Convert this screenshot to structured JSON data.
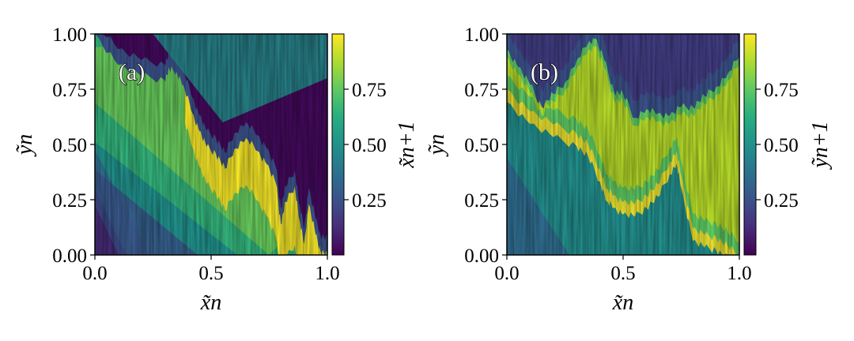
{
  "chart_data": [
    {
      "type": "heatmap",
      "panel_label": "(a)",
      "xlabel": "x̃n",
      "ylabel": "ỹn",
      "colorbar_label": "x̃n+1",
      "xlim": [
        0.0,
        1.0
      ],
      "ylim": [
        0.0,
        1.0
      ],
      "x_ticks": [
        0.0,
        0.5,
        1.0
      ],
      "x_tick_labels": [
        "0.0",
        "0.5",
        "1.0"
      ],
      "y_ticks": [
        0.0,
        0.25,
        0.5,
        0.75,
        1.0
      ],
      "y_tick_labels": [
        "0.00",
        "0.25",
        "0.50",
        "0.75",
        "1.00"
      ],
      "colorbar_ticks": [
        0.25,
        0.5,
        0.75
      ],
      "colorbar_tick_labels": [
        "0.25",
        "0.50",
        "0.75"
      ],
      "colorbar_range": [
        0.0,
        1.0
      ],
      "colormap": "viridis",
      "grid": false,
      "boundary_curve": {
        "x": [
          0.0,
          0.1,
          0.2,
          0.3,
          0.32,
          0.35,
          0.38,
          0.42,
          0.45,
          0.48,
          0.52,
          0.56,
          0.6,
          0.65,
          0.7,
          0.74,
          0.78,
          0.8,
          0.82,
          0.86,
          0.88,
          0.9,
          0.92,
          0.95,
          0.97,
          1.0
        ],
        "y": [
          1.0,
          0.86,
          0.81,
          0.79,
          0.84,
          0.83,
          0.77,
          0.64,
          0.56,
          0.49,
          0.46,
          0.39,
          0.48,
          0.53,
          0.47,
          0.41,
          0.32,
          0.14,
          0.24,
          0.31,
          0.16,
          0.05,
          0.23,
          0.09,
          0.02,
          0.0
        ]
      }
    },
    {
      "type": "heatmap",
      "panel_label": "(b)",
      "xlabel": "x̃n",
      "ylabel": "ỹn",
      "colorbar_label": "ỹn+1",
      "xlim": [
        0.0,
        1.0
      ],
      "ylim": [
        0.0,
        1.0
      ],
      "x_ticks": [
        0.0,
        0.5,
        1.0
      ],
      "x_tick_labels": [
        "0.0",
        "0.5",
        "1.0"
      ],
      "y_ticks": [
        0.0,
        0.25,
        0.5,
        0.75,
        1.0
      ],
      "y_tick_labels": [
        "0.00",
        "0.25",
        "0.50",
        "0.75",
        "1.00"
      ],
      "colorbar_ticks": [
        0.25,
        0.5,
        0.75
      ],
      "colorbar_tick_labels": [
        "0.25",
        "0.50",
        "0.75"
      ],
      "colorbar_range": [
        0.0,
        1.0
      ],
      "colormap": "viridis",
      "grid": false,
      "upper_curve": {
        "x": [
          0.0,
          0.05,
          0.1,
          0.15,
          0.2,
          0.25,
          0.3,
          0.35,
          0.38,
          0.42,
          0.46,
          0.5,
          0.55,
          0.6,
          0.65,
          0.7,
          0.75,
          0.8,
          0.85,
          0.9,
          0.95,
          1.0
        ],
        "y": [
          0.93,
          0.85,
          0.77,
          0.67,
          0.73,
          0.78,
          0.88,
          0.96,
          0.98,
          0.88,
          0.74,
          0.73,
          0.62,
          0.66,
          0.64,
          0.63,
          0.67,
          0.67,
          0.72,
          0.76,
          0.82,
          0.9
        ]
      },
      "lower_curve": {
        "x": [
          0.0,
          0.1,
          0.2,
          0.3,
          0.35,
          0.4,
          0.43,
          0.46,
          0.5,
          0.55,
          0.6,
          0.65,
          0.7,
          0.73,
          0.75,
          0.8,
          0.85,
          0.9,
          0.95,
          1.0
        ],
        "y": [
          0.75,
          0.65,
          0.59,
          0.55,
          0.5,
          0.39,
          0.3,
          0.27,
          0.24,
          0.23,
          0.27,
          0.32,
          0.42,
          0.47,
          0.36,
          0.12,
          0.09,
          0.08,
          0.04,
          0.0
        ]
      }
    }
  ]
}
